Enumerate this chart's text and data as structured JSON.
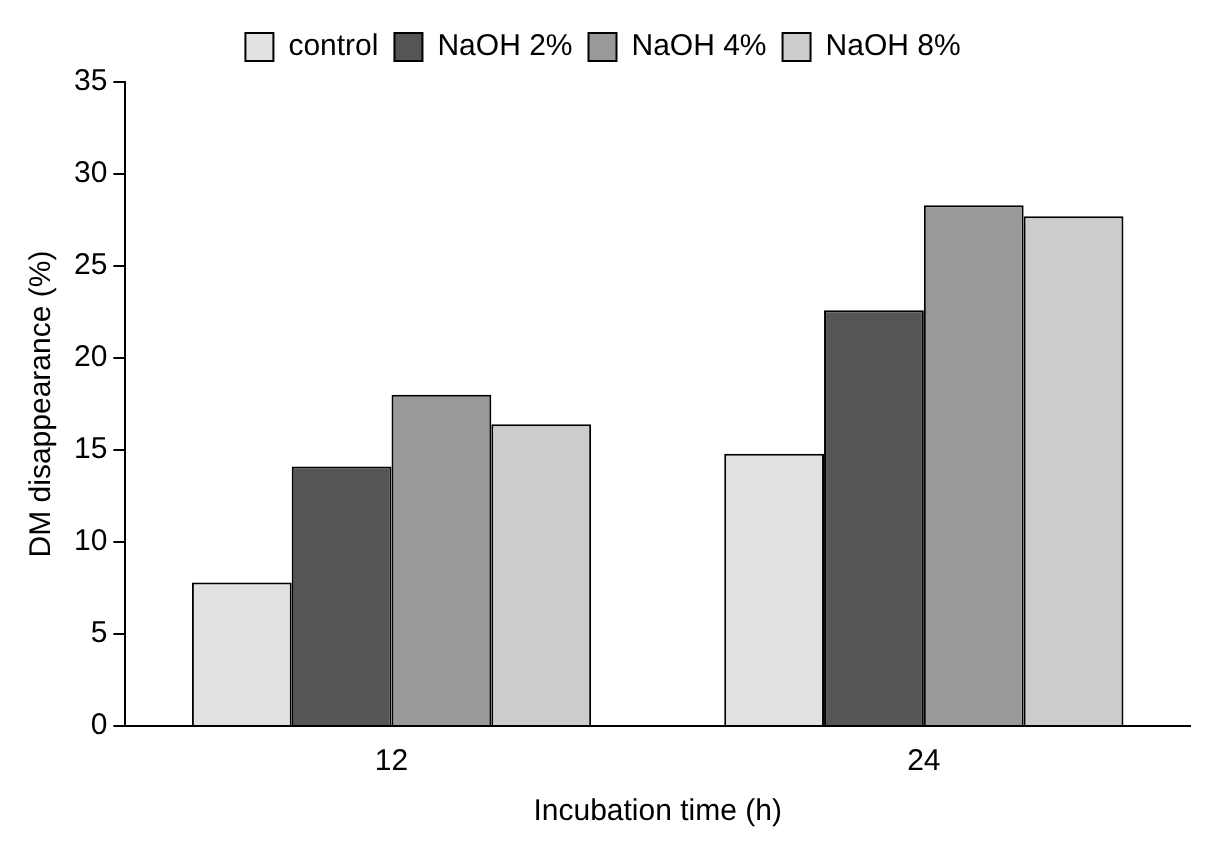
{
  "chart_data": {
    "type": "bar",
    "xlabel": "Incubation time (h)",
    "ylabel": "DM disappearance (%)",
    "categories": [
      "12",
      "24"
    ],
    "series": [
      {
        "name": "control",
        "color": "#e2e2e2",
        "values": [
          7.8,
          14.8
        ]
      },
      {
        "name": "NaOH 2%",
        "color": "#555555",
        "values": [
          14.1,
          22.6
        ]
      },
      {
        "name": "NaOH 4%",
        "color": "#999999",
        "values": [
          18.0,
          28.3
        ]
      },
      {
        "name": "NaOH 8%",
        "color": "#cccccc",
        "values": [
          16.4,
          27.7
        ]
      }
    ],
    "ylim": [
      0,
      35
    ],
    "yticks": [
      0,
      5,
      10,
      15,
      20,
      25,
      30,
      35
    ],
    "grid": false,
    "legend": "top"
  }
}
